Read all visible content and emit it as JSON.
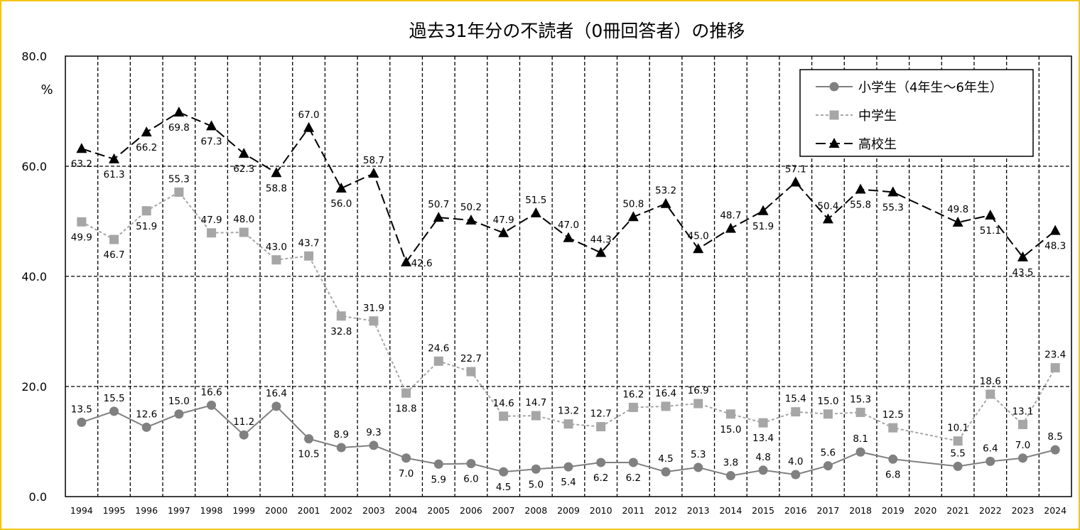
{
  "chart_data": {
    "type": "line",
    "title": "過去31年分の不読者（0冊回答者）の推移",
    "ylabel": "%",
    "xlabel": "",
    "ylim": [
      0,
      80
    ],
    "yticks": [
      "0.0",
      "20.0",
      "40.0",
      "60.0",
      "80.0"
    ],
    "grid": true,
    "legend_position": "top-right",
    "categories": [
      "1994",
      "1995",
      "1996",
      "1997",
      "1998",
      "1999",
      "2000",
      "2001",
      "2002",
      "2003",
      "2004",
      "2005",
      "2006",
      "2007",
      "2008",
      "2009",
      "2010",
      "2011",
      "2012",
      "2013",
      "2014",
      "2015",
      "2016",
      "2017",
      "2018",
      "2019",
      "2020",
      "2021",
      "2022",
      "2023",
      "2024"
    ],
    "series": [
      {
        "name": "小学生（4年生～6年生）",
        "color": "#808080",
        "marker": "circle",
        "dash": "solid",
        "values": [
          13.5,
          15.5,
          12.6,
          15.0,
          16.6,
          11.2,
          16.4,
          10.5,
          8.9,
          9.3,
          7.0,
          5.9,
          6.0,
          4.5,
          5.0,
          5.4,
          6.2,
          6.2,
          4.5,
          5.3,
          3.8,
          4.8,
          4.0,
          5.6,
          8.1,
          6.8,
          null,
          5.5,
          6.4,
          7.0,
          8.5
        ]
      },
      {
        "name": "中学生",
        "color": "#a6a6a6",
        "marker": "square",
        "dash": "dashed",
        "values": [
          49.9,
          46.7,
          51.9,
          55.3,
          47.9,
          48.0,
          43.0,
          43.7,
          32.8,
          31.9,
          18.8,
          24.6,
          22.7,
          14.6,
          14.7,
          13.2,
          12.7,
          16.2,
          16.4,
          16.9,
          15.0,
          13.4,
          15.4,
          15.0,
          15.3,
          12.5,
          null,
          10.1,
          18.6,
          13.1,
          23.4
        ]
      },
      {
        "name": "高校生",
        "color": "#000000",
        "marker": "triangle",
        "dash": "longdash",
        "values": [
          63.2,
          61.3,
          66.2,
          69.8,
          67.3,
          62.3,
          58.8,
          67.0,
          56.0,
          58.7,
          42.6,
          50.7,
          50.2,
          47.9,
          51.5,
          47.0,
          44.3,
          50.8,
          53.2,
          45.0,
          48.7,
          51.9,
          57.1,
          50.4,
          55.8,
          55.3,
          null,
          49.8,
          51.1,
          43.5,
          48.3
        ]
      }
    ]
  }
}
